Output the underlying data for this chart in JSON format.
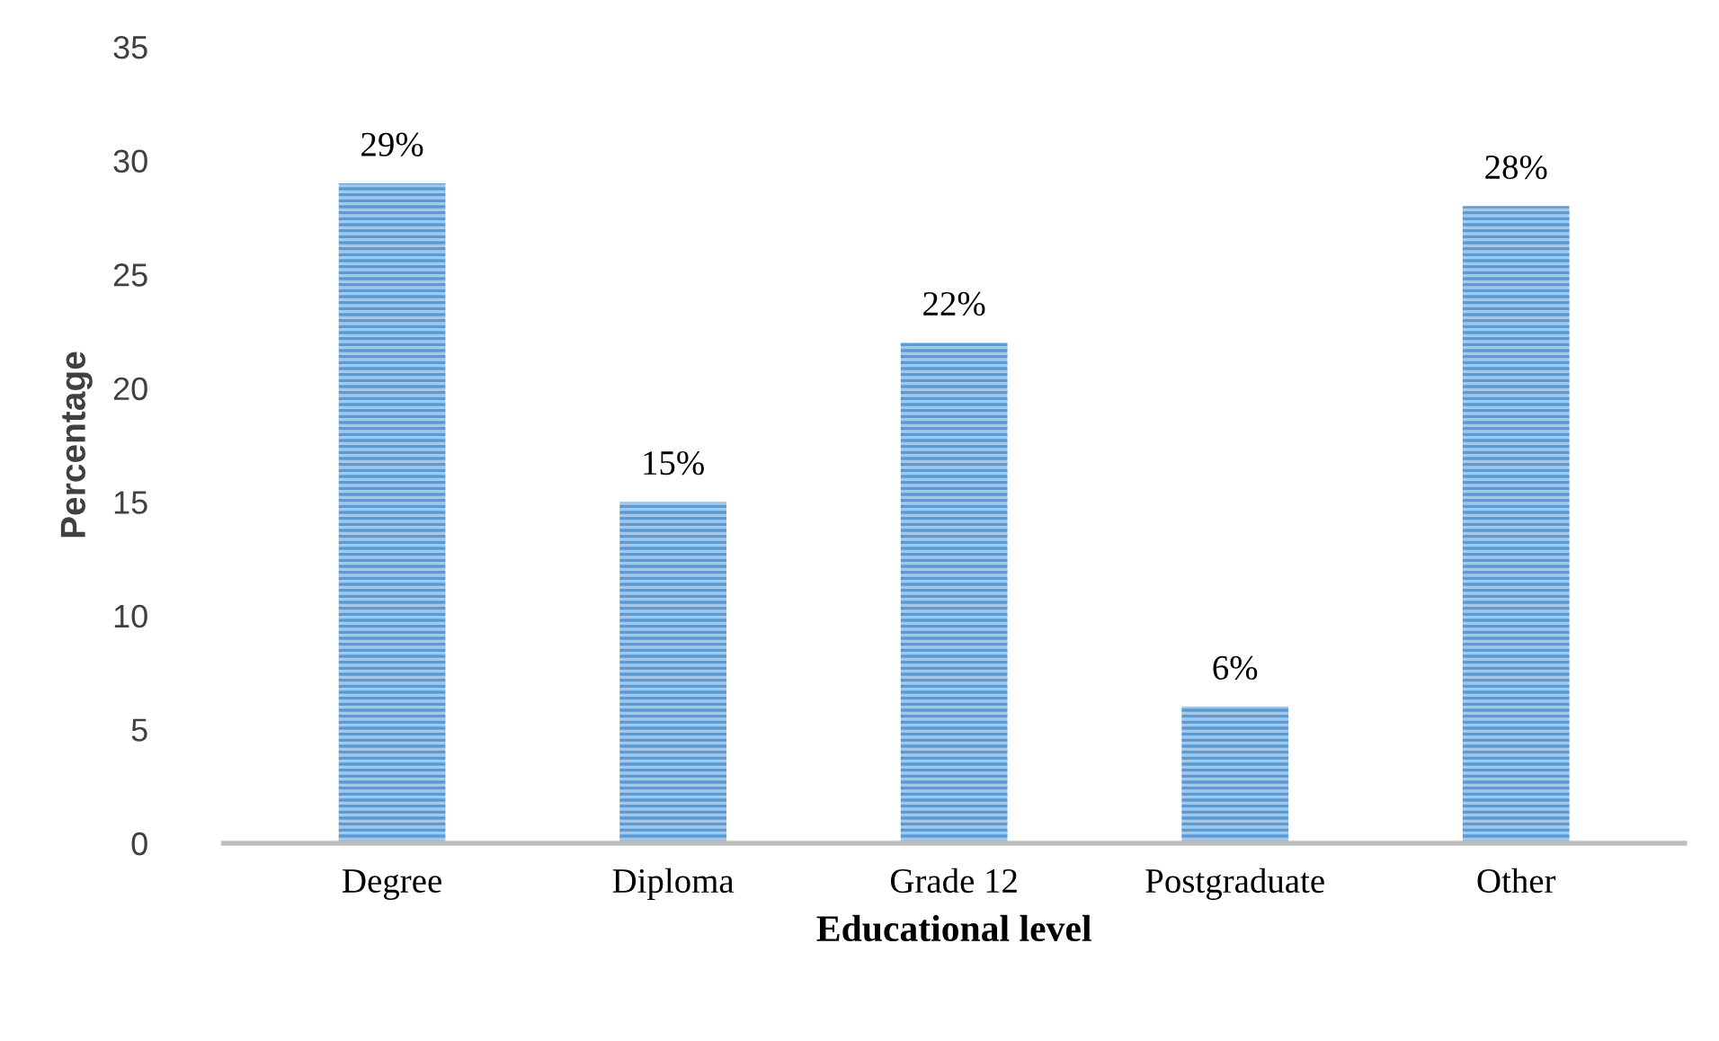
{
  "chart_data": {
    "type": "bar",
    "xlabel": "Educational level",
    "ylabel": "Percentage",
    "categories": [
      "Degree",
      "Diploma",
      "Grade 12",
      "Postgraduate",
      "Other"
    ],
    "values": [
      29,
      15,
      22,
      6,
      28
    ],
    "value_labels": [
      "29%",
      "15%",
      "22%",
      "6%",
      "28%"
    ],
    "color": "#5b9bd5",
    "ylim": [
      0,
      35
    ],
    "yticks": [
      0,
      5,
      10,
      15,
      20,
      25,
      30,
      35
    ],
    "grid": false,
    "legend": false
  }
}
